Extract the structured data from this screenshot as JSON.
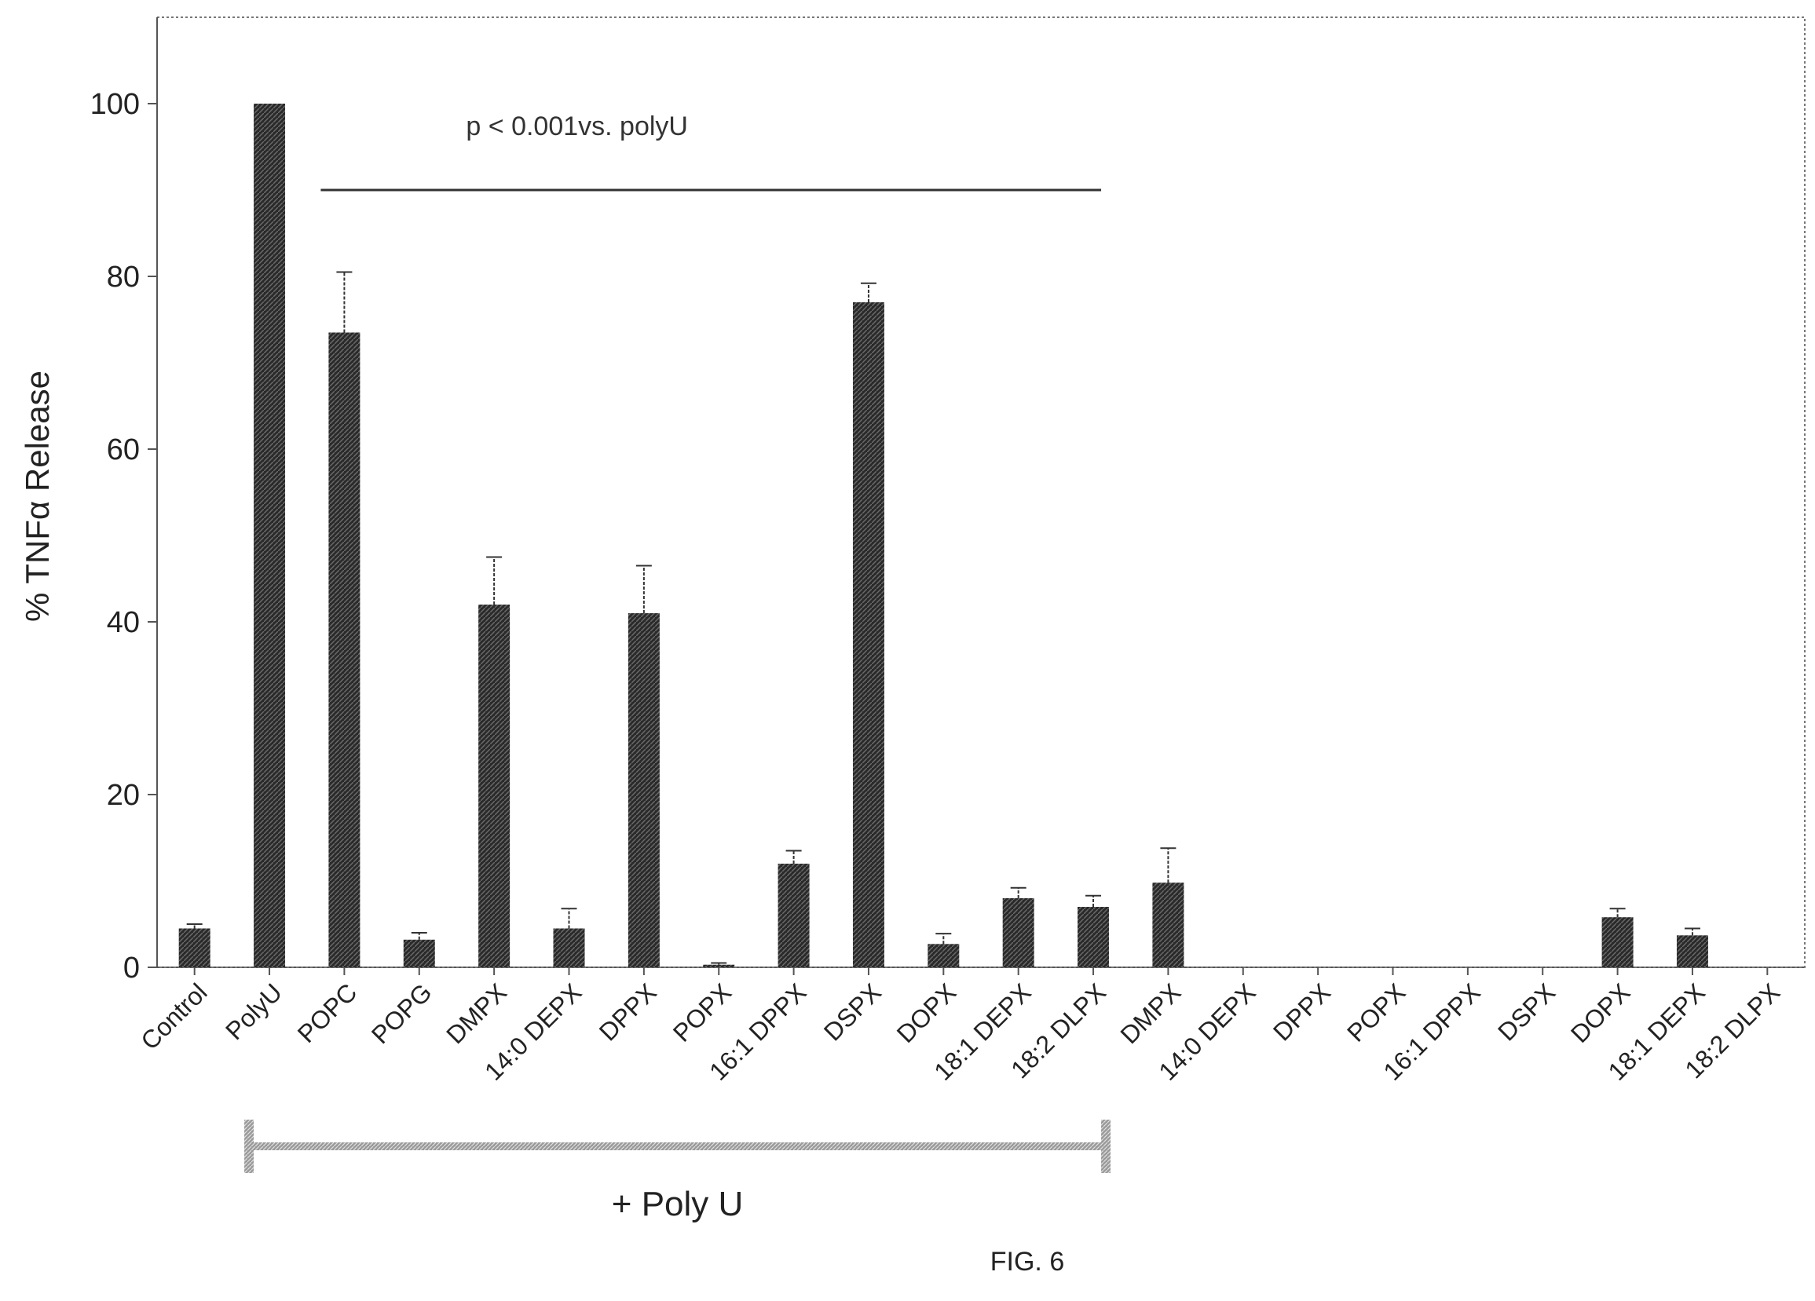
{
  "chart_data": {
    "type": "bar",
    "ylabel": "% TNFα Release",
    "xlabel": "",
    "ylim": [
      0,
      110
    ],
    "yticks": [
      0,
      20,
      40,
      60,
      80,
      100
    ],
    "ytick_labels": [
      "0",
      "20",
      "40",
      "60",
      "80",
      "100"
    ],
    "grid": false,
    "bar_color": "#3a3a3a",
    "categories": [
      "Control",
      "PolyU",
      "POPC",
      "POPG",
      "DMPX",
      "14:0 DEPX",
      "DPPX",
      "POPX",
      "16:1 DPPX",
      "DSPX",
      "DOPX",
      "18:1 DEPX",
      "18:2 DLPX",
      "DMPX",
      "14:0 DEPX",
      "DPPX",
      "POPX",
      "16:1 DPPX",
      "DSPX",
      "DOPX",
      "18:1 DEPX",
      "18:2 DLPX"
    ],
    "values": [
      4.5,
      100,
      73.5,
      3.2,
      42,
      4.5,
      41,
      0.3,
      12,
      77,
      2.7,
      8,
      7,
      9.8,
      0,
      0,
      0,
      0,
      0,
      5.8,
      3.7,
      0
    ],
    "errors": [
      0.5,
      0,
      7,
      0.8,
      5.5,
      2.3,
      5.5,
      0.2,
      1.5,
      2.2,
      1.2,
      1.2,
      1.3,
      4,
      0,
      0,
      0,
      0,
      0,
      1,
      0.8,
      0
    ],
    "annotations": {
      "significance_text": "p < 0.001vs. polyU",
      "significance_line_y": 90,
      "significance_from": 2,
      "significance_to": 12
    },
    "group_bracket": {
      "label": "+ Poly U",
      "from": 1,
      "to": 12
    },
    "figure_label": "FIG. 6"
  }
}
